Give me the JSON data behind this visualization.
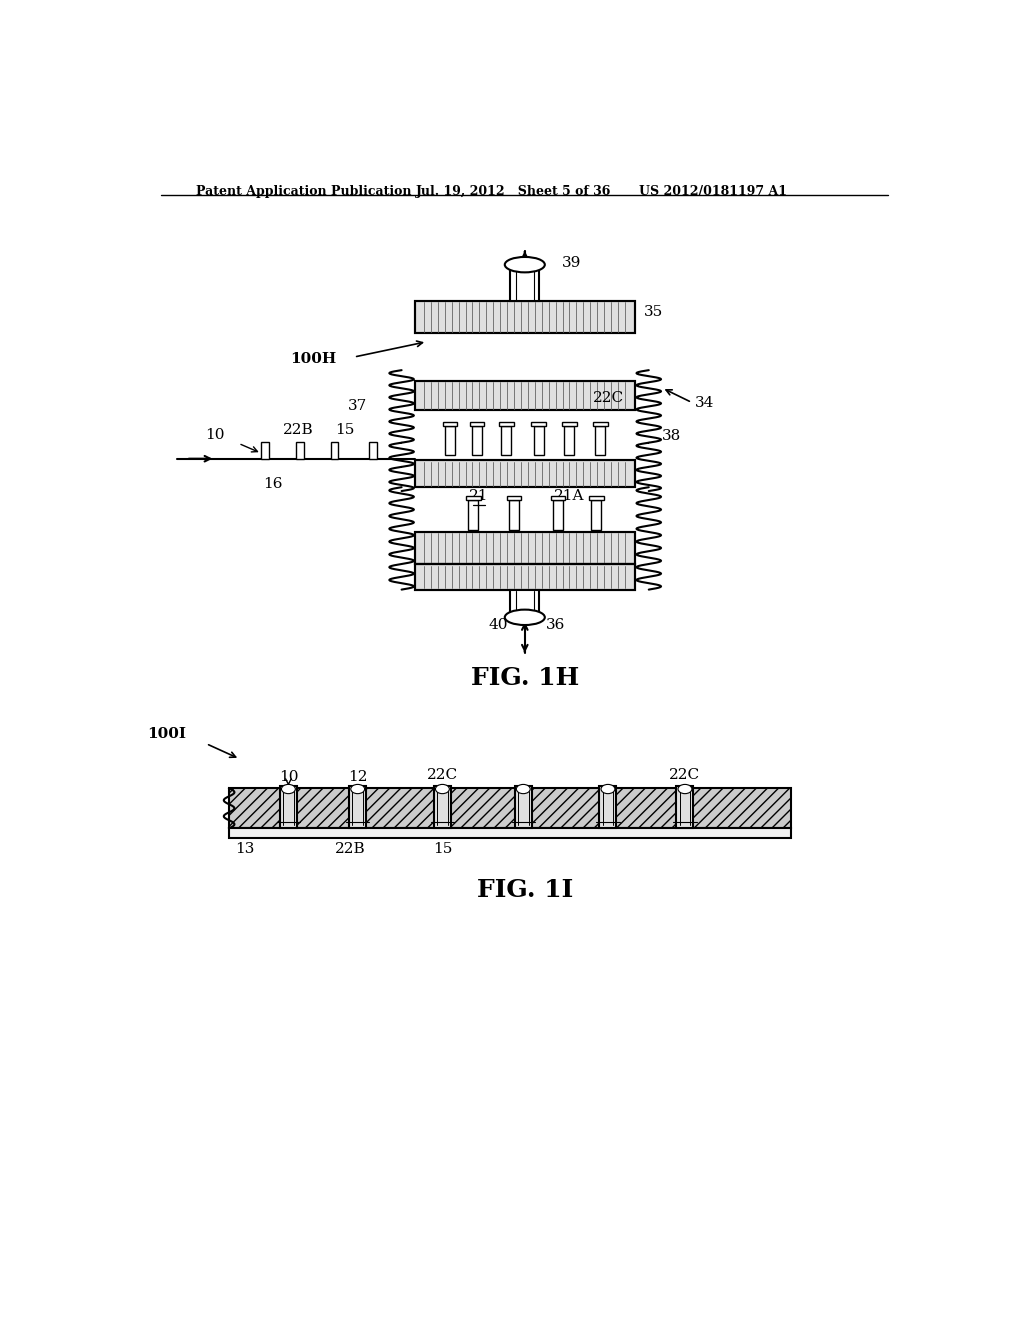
{
  "bg_color": "#ffffff",
  "line_color": "#000000",
  "header_text": "Patent Application Publication",
  "header_date": "Jul. 19, 2012   Sheet 5 of 36",
  "header_patent": "US 2012/0181197 A1",
  "fig1h_label": "FIG. 1H",
  "fig1i_label": "FIG. 1I",
  "label_100H": "100H",
  "label_100I": "100I"
}
